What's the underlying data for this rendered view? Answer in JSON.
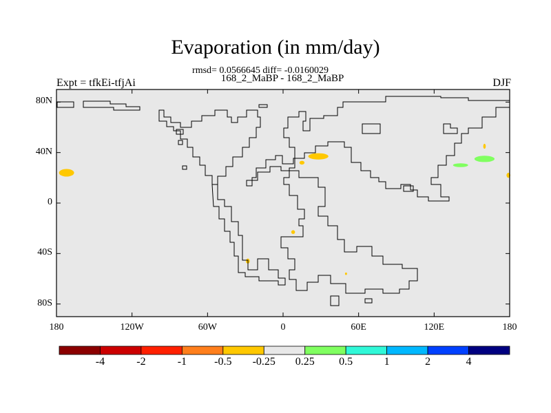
{
  "title": "Evaporation (in mm/day)",
  "stats_line": "rmsd= 0.0566645 diff= -0.0160029",
  "subtitle": "168_2_MaBP - 168_2_MaBP",
  "left_label": "Expt = tfkEi-tfjAi",
  "right_label": "DJF",
  "map": {
    "background_color": "#e8e8e8",
    "coastline_color": "#000000",
    "lon_range": [
      -180,
      180
    ],
    "lat_range": [
      -90,
      90
    ],
    "x_ticks": [
      {
        "lon": -180,
        "label": "180"
      },
      {
        "lon": -120,
        "label": "120W"
      },
      {
        "lon": -60,
        "label": "60W"
      },
      {
        "lon": 0,
        "label": "0"
      },
      {
        "lon": 60,
        "label": "60E"
      },
      {
        "lon": 120,
        "label": "120E"
      },
      {
        "lon": 180,
        "label": "180"
      }
    ],
    "y_ticks": [
      {
        "lat": 80,
        "label": "80N"
      },
      {
        "lat": 40,
        "label": "40N"
      },
      {
        "lat": 0,
        "label": "0"
      },
      {
        "lat": -40,
        "label": "40S"
      },
      {
        "lat": -80,
        "label": "80S"
      }
    ],
    "anomaly_patches": [
      {
        "lon": -172,
        "lat": 24,
        "rlon": 6,
        "rlat": 3,
        "color": "#ffc800"
      },
      {
        "lon": 28,
        "lat": 37,
        "rlon": 8,
        "rlat": 2.5,
        "color": "#ffc800"
      },
      {
        "lon": 15,
        "lat": 32,
        "rlon": 2,
        "rlat": 1.5,
        "color": "#ffc800"
      },
      {
        "lon": 160,
        "lat": 35,
        "rlon": 8,
        "rlat": 2.5,
        "color": "#80ff60"
      },
      {
        "lon": 141,
        "lat": 30,
        "rlon": 6,
        "rlat": 1.5,
        "color": "#80ff60"
      },
      {
        "lon": 160,
        "lat": 45,
        "rlon": 1,
        "rlat": 2,
        "color": "#ffc800"
      },
      {
        "lon": 179,
        "lat": 22,
        "rlon": 1.5,
        "rlat": 2,
        "color": "#ffc800"
      },
      {
        "lon": 8,
        "lat": -23,
        "rlon": 1.5,
        "rlat": 1.5,
        "color": "#ffc800"
      },
      {
        "lon": -28,
        "lat": -46,
        "rlon": 1.5,
        "rlat": 2,
        "color": "#ffc800"
      },
      {
        "lon": 50,
        "lat": -56,
        "rlon": 0.8,
        "rlat": 1,
        "color": "#ffc800"
      }
    ]
  },
  "colorbar": {
    "colors": [
      "#8b0000",
      "#cc0000",
      "#ff2000",
      "#ff7f1c",
      "#ffc800",
      "#e8e8e8",
      "#80ff60",
      "#30f8d8",
      "#00b8ff",
      "#0040ff",
      "#000080"
    ],
    "labels": [
      "-4",
      "-2",
      "-1",
      "-0.5",
      "-0.25",
      "0.25",
      "0.5",
      "1",
      "2",
      "4"
    ]
  }
}
